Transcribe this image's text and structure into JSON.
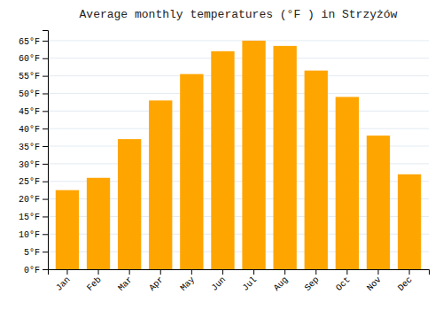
{
  "chart_data": {
    "type": "bar",
    "title": "Average monthly temperatures (°F ) in Strzyżów",
    "categories": [
      "Jan",
      "Feb",
      "Mar",
      "Apr",
      "May",
      "Jun",
      "Jul",
      "Aug",
      "Sep",
      "Oct",
      "Nov",
      "Dec"
    ],
    "values": [
      22.5,
      26.0,
      37.0,
      48.0,
      55.5,
      62.0,
      65.0,
      63.5,
      56.5,
      49.0,
      38.0,
      27.0
    ],
    "color": "#FFA500",
    "ylim": [
      0,
      68
    ],
    "yticks": [
      {
        "value": 0,
        "label": "0°F"
      },
      {
        "value": 5,
        "label": "5°F"
      },
      {
        "value": 10,
        "label": "10°F"
      },
      {
        "value": 15,
        "label": "15°F"
      },
      {
        "value": 20,
        "label": "20°F"
      },
      {
        "value": 25,
        "label": "25°F"
      },
      {
        "value": 30,
        "label": "30°F"
      },
      {
        "value": 35,
        "label": "35°F"
      },
      {
        "value": 40,
        "label": "40°F"
      },
      {
        "value": 45,
        "label": "45°F"
      },
      {
        "value": 50,
        "label": "50°F"
      },
      {
        "value": 55,
        "label": "55°F"
      },
      {
        "value": 60,
        "label": "60°F"
      },
      {
        "value": 65,
        "label": "65°F"
      }
    ],
    "grid": true
  }
}
